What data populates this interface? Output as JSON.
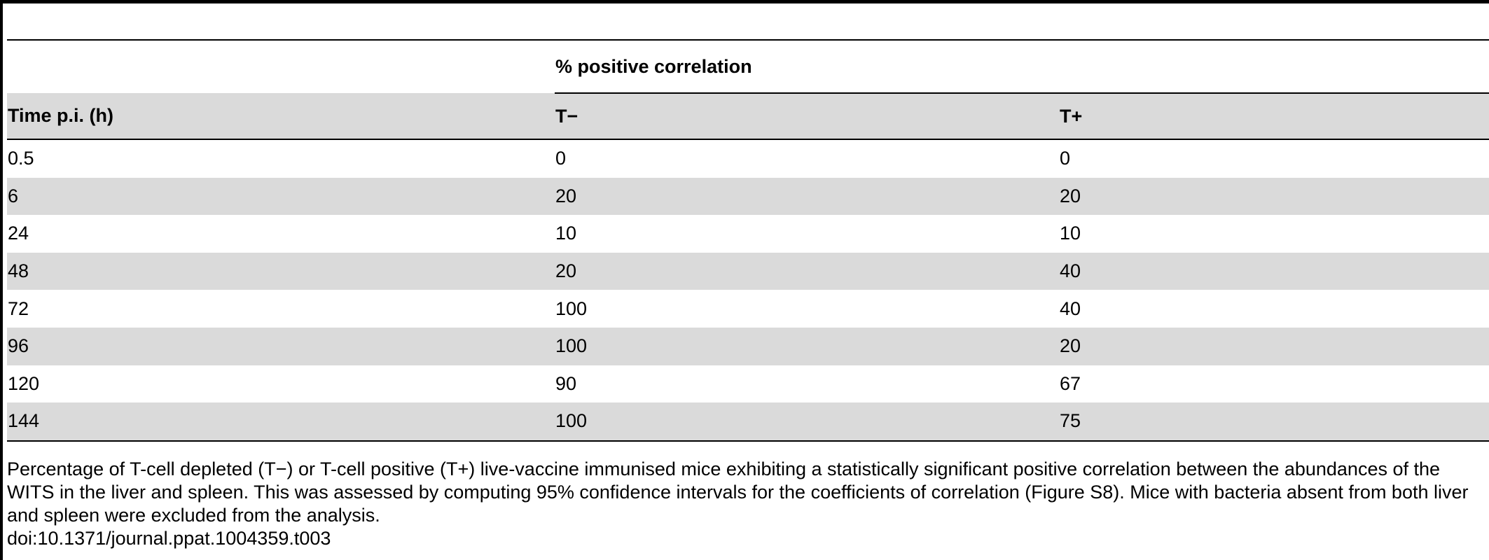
{
  "table": {
    "group_header": "% positive correlation",
    "columns": [
      "Time p.i. (h)",
      "T−",
      "T+"
    ],
    "rows": [
      [
        "0.5",
        "0",
        "0"
      ],
      [
        "6",
        "20",
        "20"
      ],
      [
        "24",
        "10",
        "10"
      ],
      [
        "48",
        "20",
        "40"
      ],
      [
        "72",
        "100",
        "40"
      ],
      [
        "96",
        "100",
        "20"
      ],
      [
        "120",
        "90",
        "67"
      ],
      [
        "144",
        "100",
        "75"
      ]
    ]
  },
  "caption": "Percentage of T-cell depleted (T−) or T-cell positive (T+) live-vaccine immunised mice exhibiting a statistically significant positive correlation between the abundances of the WITS in the liver and spleen. This was assessed by computing 95% confidence intervals for the coefficients of correlation (Figure S8). Mice with bacteria absent from both liver and spleen were excluded from the analysis.",
  "doi": "doi:10.1371/journal.ppat.1004359.t003",
  "colors": {
    "row_shade": "#dadada",
    "rule": "#000000"
  }
}
